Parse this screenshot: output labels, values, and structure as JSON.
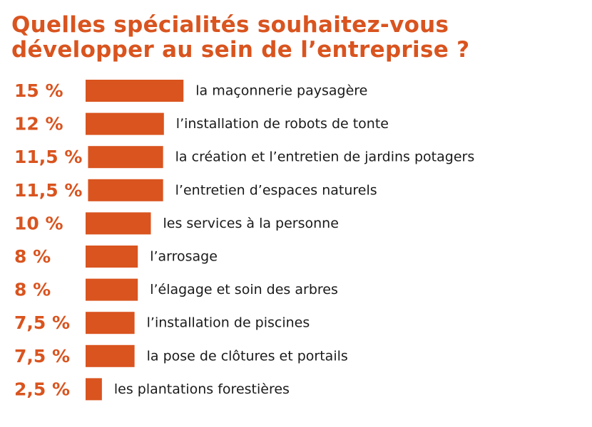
{
  "chart_data": {
    "type": "bar",
    "orientation": "horizontal",
    "title_lines": [
      "Quelles spécialités souhaitez-vous",
      "développer au sein de l’entreprise ?"
    ],
    "categories": [
      "la maçonnerie paysagère",
      "l’installation de robots de tonte",
      "la création et l’entretien de jardins potagers",
      "l’entretien d’espaces naturels",
      "les services à la personne",
      "l’arrosage",
      "l’élagage et soin des arbres",
      "l’installation de piscines",
      "la pose de clôtures et portails",
      "les plantations forestières"
    ],
    "values": [
      15,
      12,
      11.5,
      11.5,
      10,
      8,
      8,
      7.5,
      7.5,
      2.5
    ],
    "value_labels": [
      "15 %",
      "12 %",
      "11,5 %",
      "11,5 %",
      "10 %",
      "8 %",
      "8 %",
      "7,5 %",
      "7,5 %",
      "2,5 %"
    ],
    "bar_color": "#d9541f",
    "title_color": "#d9541f",
    "label_color": "#1a1a1a",
    "grid": false,
    "legend": "none"
  }
}
